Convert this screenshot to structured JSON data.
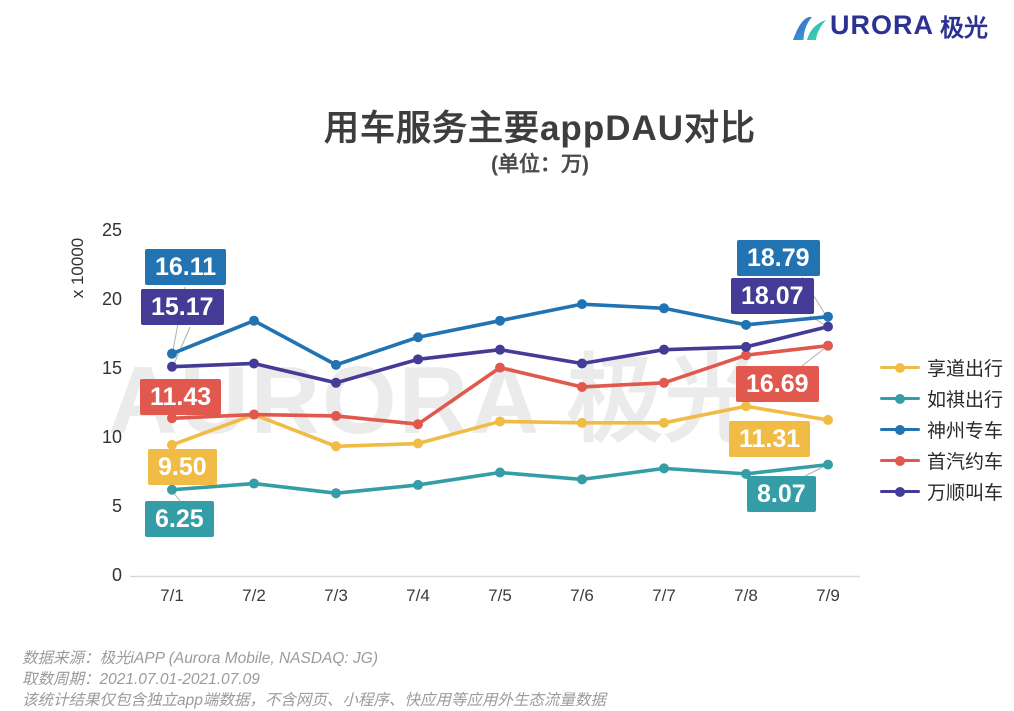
{
  "logo": {
    "text": "URORA",
    "suffix": "极光"
  },
  "header": {
    "title": "用车服务主要appDAU对比",
    "subtitle": "(单位：万)"
  },
  "watermark": "AURORA 极光",
  "footer": {
    "source": "数据来源：极光iAPP (Aurora Mobile, NASDAQ: JG)",
    "period": "取数周期：2021.07.01-2021.07.09",
    "note": "该统计结果仅包含独立app端数据，不含网页、小程序、快应用等应用外生态流量数据"
  },
  "chart_data": {
    "type": "line",
    "title": "用车服务主要appDAU对比",
    "subtitle": "(单位：万)",
    "x": [
      "7/1",
      "7/2",
      "7/3",
      "7/4",
      "7/5",
      "7/6",
      "7/7",
      "7/8",
      "7/9"
    ],
    "ylabel": "x 10000",
    "ylim": [
      0,
      25
    ],
    "yticks": [
      0,
      5,
      10,
      15,
      20,
      25
    ],
    "grid": false,
    "legend_position": "right",
    "series": [
      {
        "name": "享道出行",
        "color": "#f1bc45",
        "values": [
          9.5,
          11.7,
          9.4,
          9.6,
          11.2,
          11.1,
          11.1,
          12.3,
          11.31
        ]
      },
      {
        "name": "如祺出行",
        "color": "#359da6",
        "values": [
          6.25,
          6.7,
          6.0,
          6.6,
          7.5,
          7.0,
          7.8,
          7.4,
          8.07
        ]
      },
      {
        "name": "神州专车",
        "color": "#2273b2",
        "values": [
          16.11,
          18.5,
          15.3,
          17.3,
          18.5,
          19.7,
          19.4,
          18.2,
          18.79
        ]
      },
      {
        "name": "首汽约车",
        "color": "#e0584e",
        "values": [
          11.43,
          11.7,
          11.6,
          11.0,
          15.1,
          13.7,
          14.0,
          16.0,
          16.69
        ]
      },
      {
        "name": "万顺叫车",
        "color": "#443b96",
        "values": [
          15.17,
          15.4,
          14.0,
          15.7,
          16.4,
          15.4,
          16.4,
          16.6,
          18.07
        ]
      }
    ],
    "labeled_endpoints": {
      "享道出行": {
        "first": "9.50",
        "last": "11.31"
      },
      "如祺出行": {
        "first": "6.25",
        "last": "8.07"
      },
      "神州专车": {
        "first": "16.11",
        "last": "18.79"
      },
      "首汽约车": {
        "first": "11.43",
        "last": "16.69"
      },
      "万顺叫车": {
        "first": "15.17",
        "last": "18.07"
      }
    }
  }
}
